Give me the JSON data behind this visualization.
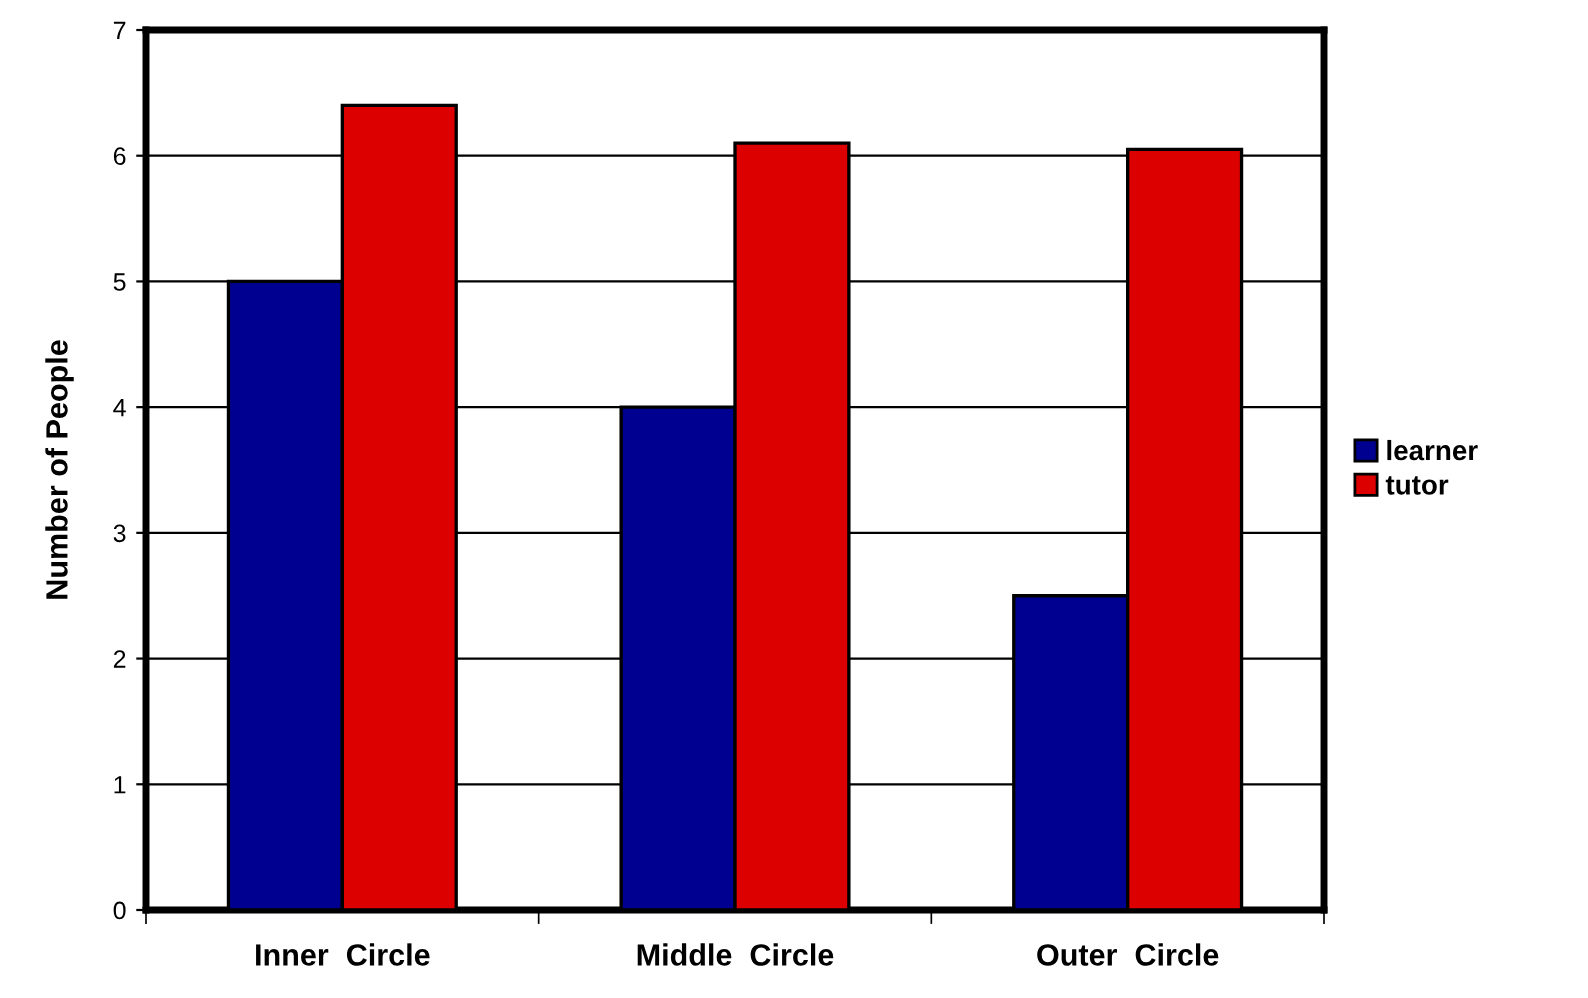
{
  "chart_data": {
    "type": "bar",
    "ylabel": "Number of People",
    "categories": [
      "Inner  Circle",
      "Middle  Circle",
      "Outer  Circle"
    ],
    "series": [
      {
        "name": "learner",
        "color": "#000090",
        "values": [
          5,
          4,
          2.5
        ]
      },
      {
        "name": "tutor",
        "color": "#dd0000",
        "values": [
          6.4,
          6.1,
          6.05
        ]
      }
    ],
    "ylim": [
      0,
      7
    ],
    "yticks": [
      0,
      1,
      2,
      3,
      4,
      5,
      6,
      7
    ],
    "grid": "y",
    "legend": "right"
  }
}
